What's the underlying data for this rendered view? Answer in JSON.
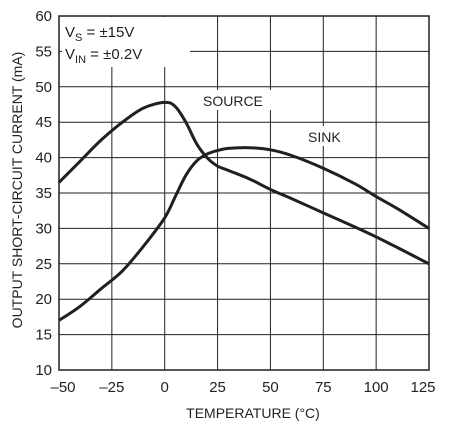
{
  "chart_data": {
    "type": "line",
    "title": "",
    "xlabel": "TEMPERATURE (°C)",
    "ylabel": "OUTPUT SHORT-CIRCUIT CURRENT (mA)",
    "xlim": [
      -50,
      125
    ],
    "ylim": [
      10,
      60
    ],
    "x_ticks": [
      -50,
      -25,
      0,
      25,
      50,
      75,
      100,
      125
    ],
    "x_tick_labels": [
      "–50",
      "–25",
      "0",
      "25",
      "50",
      "75",
      "100",
      "125"
    ],
    "y_ticks": [
      10,
      15,
      20,
      25,
      30,
      35,
      40,
      45,
      50,
      55,
      60
    ],
    "y_tick_labels": [
      "10",
      "15",
      "20",
      "25",
      "30",
      "35",
      "40",
      "45",
      "50",
      "55",
      "60"
    ],
    "grid": true,
    "conditions": {
      "vs_main": "V",
      "vs_sub": "S",
      "vs_value": " = ±15V",
      "vin_main": "V",
      "vin_sub": "IN",
      "vin_value": " = ±0.2V"
    },
    "series": [
      {
        "name": "SOURCE",
        "x": [
          -50,
          -40,
          -30,
          -20,
          -10,
          0,
          5,
          10,
          15,
          20,
          25,
          30,
          40,
          50,
          60,
          75,
          90,
          100,
          110,
          125
        ],
        "y": [
          36.5,
          39.5,
          42.5,
          45.0,
          47.0,
          47.8,
          47.2,
          45.0,
          42.0,
          40.0,
          38.8,
          38.2,
          37.0,
          35.5,
          34.2,
          32.2,
          30.2,
          28.8,
          27.3,
          25.0
        ]
      },
      {
        "name": "SINK",
        "x": [
          -50,
          -40,
          -30,
          -20,
          -10,
          0,
          5,
          10,
          15,
          20,
          25,
          30,
          40,
          50,
          60,
          75,
          90,
          100,
          110,
          125
        ],
        "y": [
          17.0,
          19.0,
          21.5,
          24.0,
          27.5,
          31.5,
          34.5,
          37.5,
          39.5,
          40.5,
          41.0,
          41.3,
          41.4,
          41.1,
          40.3,
          38.5,
          36.3,
          34.5,
          32.8,
          30.0
        ]
      }
    ]
  }
}
